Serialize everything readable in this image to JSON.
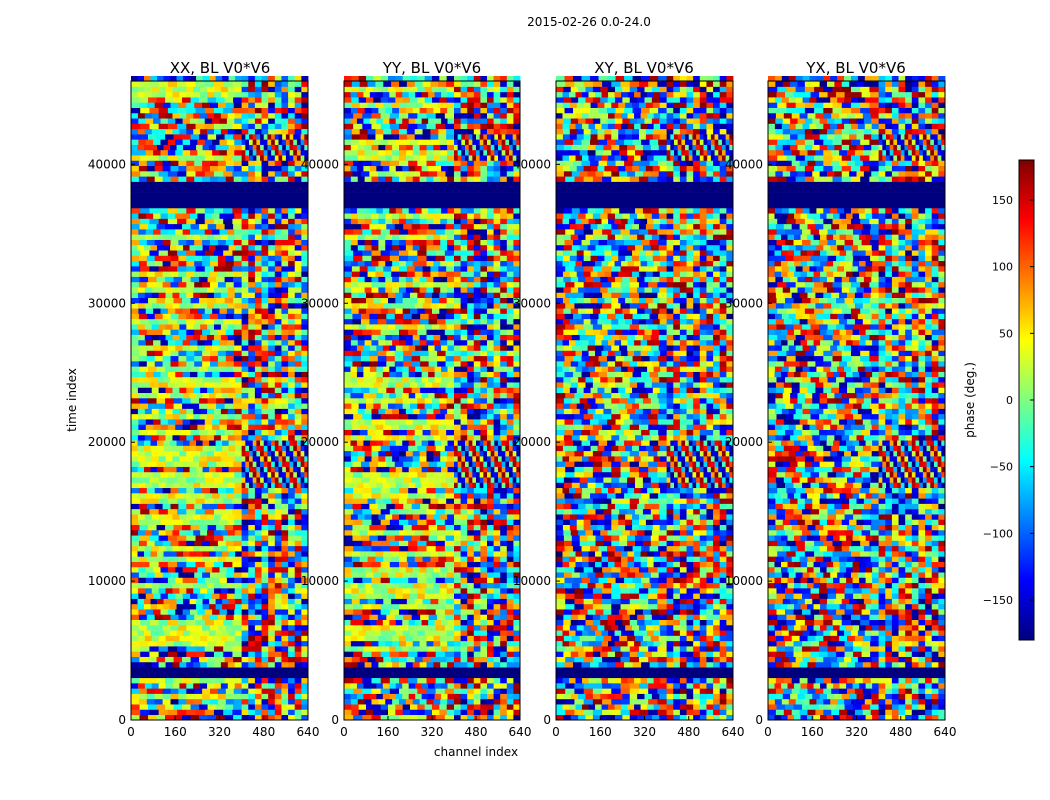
{
  "chart_data": {
    "type": "heatmap",
    "suptitle": "2015-02-26 0.0-24.0",
    "colorbar": {
      "label": "phase (deg.)",
      "range": [
        -180,
        180
      ],
      "ticks": [
        150,
        100,
        50,
        0,
        -50,
        -100,
        -150
      ],
      "tick_labels": [
        "150",
        "100",
        "50",
        "0",
        "−50",
        "−100",
        "−150"
      ],
      "colormap": "jet",
      "colors": [
        "#00007f",
        "#0000ff",
        "#007fff",
        "#00ffff",
        "#7fff7f",
        "#ffff00",
        "#ff7f00",
        "#ff0000",
        "#7f0000"
      ]
    },
    "xlabel": "channel index",
    "ylabel": "time index",
    "xlim": [
      0,
      640
    ],
    "ylim": [
      0,
      46000
    ],
    "xticks": [
      0,
      160,
      320,
      480,
      640
    ],
    "yticks": [
      0,
      10000,
      20000,
      30000,
      40000
    ],
    "panels": [
      {
        "title": "XX, BL V0*V6",
        "ytick_labels": [
          "0",
          "10000",
          "20000",
          "30000",
          "40000"
        ]
      },
      {
        "title": "YY, BL V0*V6",
        "ytick_labels": [
          "0",
          "10000",
          "20000",
          "30000",
          "40000"
        ]
      },
      {
        "title": "XY, BL V0*V6",
        "ytick_labels": [
          "0",
          "10000",
          "20000",
          "30000",
          "40000"
        ]
      },
      {
        "title": "YX, BL V0*V6",
        "ytick_labels": [
          "0",
          "10000",
          "20000",
          "30000",
          "40000"
        ]
      }
    ],
    "structure": {
      "channel_split": 400,
      "blank_bands": [
        [
          2800,
          3700
        ],
        [
          36800,
          38400
        ]
      ],
      "coherent_bands": [
        [
          16500,
          20000
        ],
        [
          40200,
          42000
        ]
      ],
      "noise_row_height": 380
    }
  }
}
